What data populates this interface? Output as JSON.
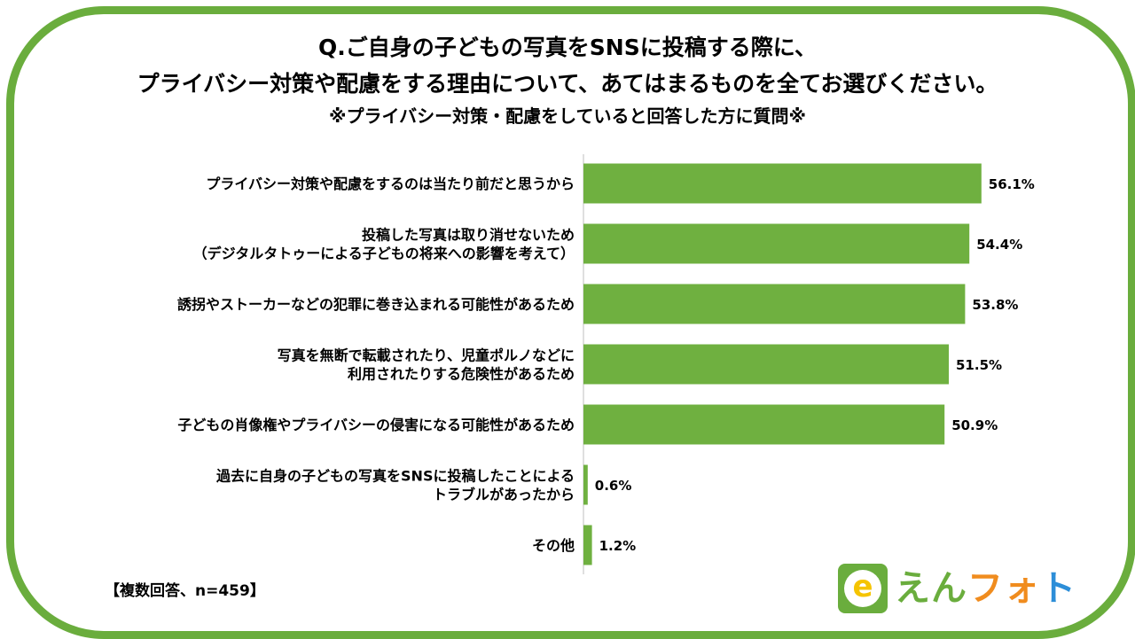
{
  "header": {
    "line1": "Q.ご自身の子どもの写真をSNSに投稿する際に、",
    "line2": "プライバシー対策や配慮をする理由について、あてはまるものを全てお選びください。",
    "line3": "※プライバシー対策・配慮をしていると回答した方に質問※"
  },
  "note": "【複数回答、n=459】",
  "logo": {
    "badge_letter": "e",
    "chars": [
      "え",
      "ん",
      "フ",
      "ォ",
      "ト"
    ],
    "colors": {
      "green": "#6aad3d",
      "orange": "#f08c1e",
      "blue": "#2d8ed8",
      "yellow": "#f5c400"
    }
  },
  "chart_data": {
    "type": "bar",
    "orientation": "horizontal",
    "categories": [
      [
        "プライバシー対策や配慮をするのは当たり前だと思うから"
      ],
      [
        "投稿した写真は取り消せないため",
        "（デジタルタトゥーによる子どもの将来への影響を考えて）"
      ],
      [
        "誘拐やストーカーなどの犯罪に巻き込まれる可能性があるため"
      ],
      [
        "写真を無断で転載されたり、児童ポルノなどに",
        "利用されたりする危険性があるため"
      ],
      [
        "子どもの肖像権やプライバシーの侵害になる可能性があるため"
      ],
      [
        "過去に自身の子どもの写真をSNSに投稿したことによる",
        "トラブルがあったから"
      ],
      [
        "その他"
      ]
    ],
    "values": [
      56.1,
      54.4,
      53.8,
      51.5,
      50.9,
      0.6,
      1.2
    ],
    "value_labels": [
      "56.1%",
      "54.4%",
      "53.8%",
      "51.5%",
      "50.9%",
      "0.6%",
      "1.2%"
    ],
    "bar_color": "#6fb040",
    "xlim": [
      0,
      100
    ],
    "grid": false
  }
}
